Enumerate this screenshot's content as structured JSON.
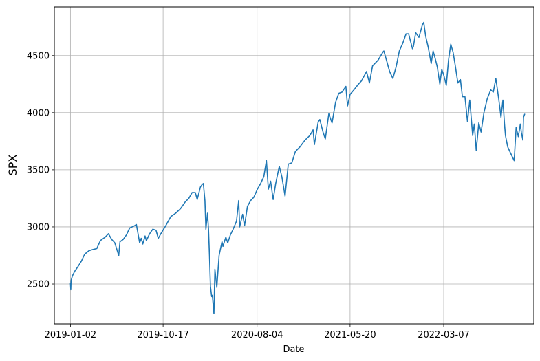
{
  "chart_data": {
    "type": "line",
    "title": "",
    "xlabel": "Date",
    "ylabel": "SPX",
    "grid": true,
    "xlim": [
      "2018-11-13",
      "2022-12-12"
    ],
    "ylim": [
      2151,
      4926
    ],
    "xticks": [
      "2019-01-02",
      "2019-10-17",
      "2020-08-04",
      "2021-05-20",
      "2022-03-07"
    ],
    "yticks": [
      2500,
      3000,
      3500,
      4000,
      4500
    ],
    "series": [
      {
        "name": "",
        "color": "#1f77b4",
        "x": [
          "2019-01-02",
          "2019-01-03",
          "2019-01-04",
          "2019-01-08",
          "2019-01-15",
          "2019-01-25",
          "2019-02-05",
          "2019-02-15",
          "2019-02-28",
          "2019-03-10",
          "2019-03-25",
          "2019-04-05",
          "2019-04-20",
          "2019-04-30",
          "2019-05-10",
          "2019-05-20",
          "2019-06-01",
          "2019-06-05",
          "2019-06-15",
          "2019-06-25",
          "2019-07-05",
          "2019-07-20",
          "2019-07-26",
          "2019-08-05",
          "2019-08-10",
          "2019-08-15",
          "2019-08-22",
          "2019-08-26",
          "2019-09-05",
          "2019-09-15",
          "2019-09-25",
          "2019-10-02",
          "2019-10-10",
          "2019-10-25",
          "2019-11-10",
          "2019-11-25",
          "2019-12-10",
          "2019-12-25",
          "2020-01-05",
          "2020-01-15",
          "2020-01-25",
          "2020-01-31",
          "2020-02-10",
          "2020-02-15",
          "2020-02-19",
          "2020-02-24",
          "2020-02-27",
          "2020-03-03",
          "2020-03-06",
          "2020-03-09",
          "2020-03-12",
          "2020-03-16",
          "2020-03-18",
          "2020-03-23",
          "2020-03-26",
          "2020-04-01",
          "2020-04-08",
          "2020-04-17",
          "2020-04-20",
          "2020-04-29",
          "2020-05-05",
          "2020-05-13",
          "2020-05-20",
          "2020-06-01",
          "2020-06-08",
          "2020-06-11",
          "2020-06-20",
          "2020-06-26",
          "2020-07-05",
          "2020-07-15",
          "2020-07-25",
          "2020-08-05",
          "2020-08-15",
          "2020-08-25",
          "2020-09-02",
          "2020-09-08",
          "2020-09-15",
          "2020-09-23",
          "2020-10-01",
          "2020-10-12",
          "2020-10-20",
          "2020-10-30",
          "2020-11-09",
          "2020-11-20",
          "2020-12-01",
          "2020-12-15",
          "2020-12-31",
          "2021-01-15",
          "2021-01-25",
          "2021-01-29",
          "2021-02-10",
          "2021-02-15",
          "2021-02-25",
          "2021-03-04",
          "2021-03-15",
          "2021-03-25",
          "2021-04-05",
          "2021-04-15",
          "2021-04-25",
          "2021-05-07",
          "2021-05-12",
          "2021-05-20",
          "2021-06-01",
          "2021-06-15",
          "2021-06-25",
          "2021-07-10",
          "2021-07-19",
          "2021-07-29",
          "2021-08-15",
          "2021-08-30",
          "2021-09-02",
          "2021-09-10",
          "2021-09-20",
          "2021-09-30",
          "2021-10-10",
          "2021-10-20",
          "2021-10-31",
          "2021-11-10",
          "2021-11-18",
          "2021-11-30",
          "2021-12-03",
          "2021-12-10",
          "2021-12-20",
          "2021-12-31",
          "2022-01-04",
          "2022-01-10",
          "2022-01-18",
          "2022-01-27",
          "2022-02-02",
          "2022-02-08",
          "2022-02-15",
          "2022-02-23",
          "2022-03-01",
          "2022-03-08",
          "2022-03-15",
          "2022-03-22",
          "2022-03-29",
          "2022-04-05",
          "2022-04-12",
          "2022-04-20",
          "2022-04-28",
          "2022-05-04",
          "2022-05-12",
          "2022-05-20",
          "2022-05-27",
          "2022-06-05",
          "2022-06-10",
          "2022-06-16",
          "2022-06-24",
          "2022-07-01",
          "2022-07-10",
          "2022-07-20",
          "2022-07-31",
          "2022-08-08",
          "2022-08-16",
          "2022-08-25",
          "2022-09-01",
          "2022-09-07",
          "2022-09-12",
          "2022-09-15",
          "2022-09-22",
          "2022-09-30",
          "2022-10-07",
          "2022-10-12",
          "2022-10-18",
          "2022-10-25",
          "2022-10-31",
          "2022-11-03",
          "2022-11-08",
          "2022-11-10",
          "2022-11-14"
        ],
        "y": [
          2510,
          2450,
          2530,
          2570,
          2610,
          2650,
          2700,
          2760,
          2790,
          2800,
          2810,
          2880,
          2910,
          2940,
          2890,
          2860,
          2750,
          2870,
          2890,
          2930,
          2990,
          3010,
          3020,
          2860,
          2900,
          2850,
          2920,
          2880,
          2940,
          2980,
          2970,
          2900,
          2940,
          3010,
          3090,
          3120,
          3160,
          3220,
          3250,
          3300,
          3300,
          3240,
          3350,
          3370,
          3380,
          3230,
          2980,
          3120,
          2980,
          2750,
          2480,
          2390,
          2400,
          2240,
          2630,
          2470,
          2750,
          2870,
          2830,
          2910,
          2860,
          2930,
          2970,
          3050,
          3230,
          3000,
          3110,
          3010,
          3180,
          3230,
          3260,
          3330,
          3380,
          3440,
          3580,
          3330,
          3400,
          3240,
          3380,
          3530,
          3440,
          3270,
          3550,
          3560,
          3660,
          3700,
          3760,
          3800,
          3850,
          3720,
          3920,
          3940,
          3830,
          3770,
          3990,
          3910,
          4090,
          4170,
          4180,
          4230,
          4060,
          4160,
          4200,
          4250,
          4280,
          4360,
          4260,
          4410,
          4460,
          4530,
          4540,
          4460,
          4360,
          4300,
          4400,
          4540,
          4610,
          4690,
          4690,
          4560,
          4580,
          4700,
          4660,
          4770,
          4790,
          4670,
          4570,
          4430,
          4540,
          4480,
          4400,
          4250,
          4380,
          4320,
          4240,
          4460,
          4600,
          4530,
          4410,
          4260,
          4290,
          4140,
          4140,
          3920,
          4110,
          3800,
          3900,
          3670,
          3910,
          3830,
          4000,
          4120,
          4200,
          4180,
          4300,
          4120,
          3960,
          4110,
          3900,
          3800,
          3700,
          3650,
          3610,
          3580,
          3870,
          3790,
          3900,
          3830,
          3760,
          3960,
          3990
        ]
      }
    ]
  }
}
